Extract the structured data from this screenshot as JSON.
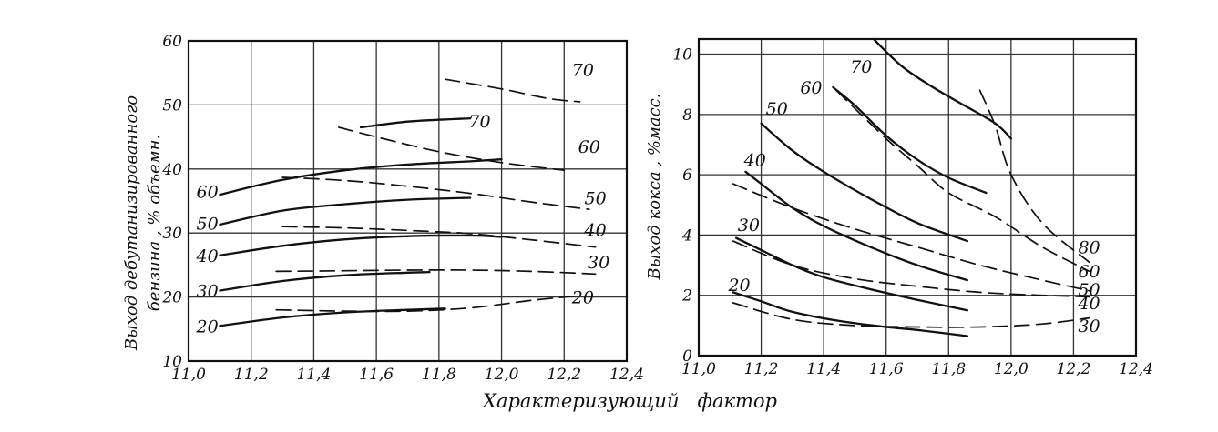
{
  "xlabel": "Характеризующий   фактор",
  "chart_data": [
    {
      "type": "line",
      "ylabel_line1": "Выход дебутанизированного",
      "ylabel_line2": "бензина , % объемн.",
      "xlim": [
        11.0,
        12.4
      ],
      "ylim": [
        10,
        60
      ],
      "x_ticks": [
        "11,0",
        "11,2",
        "11,4",
        "11,6",
        "11,8",
        "12,0",
        "12,2",
        "12,4"
      ],
      "y_ticks": [
        "10",
        "20",
        "30",
        "40",
        "50",
        "60"
      ],
      "series": [
        {
          "style": "solid",
          "label": "20",
          "label_pos": [
            11.06,
            15.5
          ],
          "points": [
            [
              11.1,
              15.5
            ],
            [
              11.3,
              16.8
            ],
            [
              11.5,
              17.6
            ],
            [
              11.7,
              18.0
            ],
            [
              11.82,
              18.2
            ]
          ]
        },
        {
          "style": "solid",
          "label": "30",
          "label_pos": [
            11.06,
            21
          ],
          "points": [
            [
              11.1,
              21.0
            ],
            [
              11.3,
              22.5
            ],
            [
              11.5,
              23.4
            ],
            [
              11.7,
              23.8
            ],
            [
              11.77,
              23.9
            ]
          ]
        },
        {
          "style": "solid",
          "label": "40",
          "label_pos": [
            11.06,
            26.5
          ],
          "points": [
            [
              11.1,
              26.5
            ],
            [
              11.3,
              28.0
            ],
            [
              11.5,
              29.0
            ],
            [
              11.7,
              29.5
            ],
            [
              11.9,
              29.6
            ],
            [
              12.0,
              29.4
            ]
          ]
        },
        {
          "style": "solid",
          "label": "50",
          "label_pos": [
            11.06,
            31.5
          ],
          "points": [
            [
              11.1,
              31.3
            ],
            [
              11.3,
              33.5
            ],
            [
              11.5,
              34.5
            ],
            [
              11.7,
              35.2
            ],
            [
              11.9,
              35.5
            ]
          ]
        },
        {
          "style": "solid",
          "label": "60",
          "label_pos": [
            11.06,
            36.5
          ],
          "points": [
            [
              11.1,
              36.0
            ],
            [
              11.3,
              38.3
            ],
            [
              11.5,
              39.8
            ],
            [
              11.7,
              40.7
            ],
            [
              11.9,
              41.2
            ],
            [
              12.0,
              41.5
            ]
          ]
        },
        {
          "style": "solid",
          "label": "70",
          "label_pos": [
            11.93,
            47.5
          ],
          "points": [
            [
              11.55,
              46.5
            ],
            [
              11.7,
              47.4
            ],
            [
              11.85,
              47.8
            ],
            [
              11.9,
              47.9
            ]
          ]
        },
        {
          "style": "dashed",
          "label": "20",
          "label_pos": [
            12.26,
            20
          ],
          "points": [
            [
              11.28,
              18.0
            ],
            [
              11.5,
              17.8
            ],
            [
              11.7,
              17.8
            ],
            [
              11.9,
              18.3
            ],
            [
              12.1,
              19.5
            ],
            [
              12.25,
              20.2
            ]
          ]
        },
        {
          "style": "dashed",
          "label": "30",
          "label_pos": [
            12.31,
            25.5
          ],
          "points": [
            [
              11.28,
              24.0
            ],
            [
              11.5,
              24.1
            ],
            [
              11.7,
              24.2
            ],
            [
              11.9,
              24.2
            ],
            [
              12.1,
              24.0
            ],
            [
              12.3,
              23.6
            ]
          ]
        },
        {
          "style": "dashed",
          "label": "40",
          "label_pos": [
            12.3,
            30.5
          ],
          "points": [
            [
              11.3,
              31.0
            ],
            [
              11.5,
              30.8
            ],
            [
              11.7,
              30.4
            ],
            [
              11.9,
              29.9
            ],
            [
              12.1,
              28.9
            ],
            [
              12.3,
              27.8
            ]
          ]
        },
        {
          "style": "dashed",
          "label": "50",
          "label_pos": [
            12.3,
            35.5
          ],
          "points": [
            [
              11.3,
              38.7
            ],
            [
              11.5,
              38.2
            ],
            [
              11.7,
              37.3
            ],
            [
              11.9,
              36.2
            ],
            [
              12.1,
              34.8
            ],
            [
              12.28,
              33.7
            ]
          ]
        },
        {
          "style": "dashed",
          "label": "60",
          "label_pos": [
            12.28,
            43.5
          ],
          "points": [
            [
              11.48,
              46.5
            ],
            [
              11.6,
              45.0
            ],
            [
              11.8,
              42.7
            ],
            [
              12.0,
              41.0
            ],
            [
              12.2,
              39.8
            ]
          ]
        },
        {
          "style": "dashed",
          "label": "70",
          "label_pos": [
            12.26,
            55.5
          ],
          "points": [
            [
              11.82,
              54.0
            ],
            [
              12.0,
              52.5
            ],
            [
              12.15,
              51.0
            ],
            [
              12.25,
              50.5
            ]
          ]
        }
      ]
    },
    {
      "type": "line",
      "ylabel": "Выход кокса , %масс.",
      "xlim": [
        11.0,
        12.4
      ],
      "ylim": [
        0,
        10.5
      ],
      "x_ticks": [
        "11,0",
        "11,2",
        "11,4",
        "11,6",
        "11,8",
        "12,0",
        "12,2",
        "12,4"
      ],
      "y_ticks": [
        "0",
        "2",
        "4",
        "6",
        "8",
        "10"
      ],
      "series": [
        {
          "style": "solid",
          "label": "20",
          "label_pos": [
            11.13,
            2.35
          ],
          "points": [
            [
              11.11,
              2.1
            ],
            [
              11.2,
              1.8
            ],
            [
              11.3,
              1.45
            ],
            [
              11.45,
              1.15
            ],
            [
              11.6,
              0.95
            ],
            [
              11.7,
              0.85
            ],
            [
              11.86,
              0.65
            ]
          ]
        },
        {
          "style": "solid",
          "label": "30",
          "label_pos": [
            11.16,
            4.35
          ],
          "points": [
            [
              11.12,
              3.9
            ],
            [
              11.2,
              3.5
            ],
            [
              11.3,
              3.0
            ],
            [
              11.4,
              2.6
            ],
            [
              11.55,
              2.2
            ],
            [
              11.7,
              1.85
            ],
            [
              11.86,
              1.5
            ]
          ]
        },
        {
          "style": "solid",
          "label": "40",
          "label_pos": [
            11.18,
            6.5
          ],
          "points": [
            [
              11.15,
              6.1
            ],
            [
              11.2,
              5.7
            ],
            [
              11.3,
              4.9
            ],
            [
              11.4,
              4.3
            ],
            [
              11.55,
              3.6
            ],
            [
              11.7,
              3.0
            ],
            [
              11.86,
              2.5
            ]
          ]
        },
        {
          "style": "solid",
          "label": "50",
          "label_pos": [
            11.25,
            8.2
          ],
          "points": [
            [
              11.2,
              7.7
            ],
            [
              11.3,
              6.8
            ],
            [
              11.4,
              6.1
            ],
            [
              11.55,
              5.2
            ],
            [
              11.7,
              4.4
            ],
            [
              11.86,
              3.8
            ]
          ]
        },
        {
          "style": "solid",
          "label": "60",
          "label_pos": [
            11.36,
            8.9
          ],
          "points": [
            [
              11.43,
              8.9
            ],
            [
              11.5,
              8.3
            ],
            [
              11.6,
              7.3
            ],
            [
              11.7,
              6.5
            ],
            [
              11.8,
              5.9
            ],
            [
              11.92,
              5.4
            ]
          ]
        },
        {
          "style": "solid",
          "label": "70",
          "label_pos": [
            11.52,
            9.6
          ],
          "points": [
            [
              11.56,
              10.5
            ],
            [
              11.65,
              9.6
            ],
            [
              11.75,
              8.9
            ],
            [
              11.85,
              8.3
            ],
            [
              11.95,
              7.7
            ],
            [
              12.0,
              7.2
            ]
          ]
        },
        {
          "style": "dashed",
          "label": "30",
          "label_pos": [
            12.25,
            1.0
          ],
          "points": [
            [
              11.11,
              1.75
            ],
            [
              11.3,
              1.2
            ],
            [
              11.5,
              1.0
            ],
            [
              11.7,
              0.95
            ],
            [
              11.9,
              0.95
            ],
            [
              12.1,
              1.05
            ],
            [
              12.25,
              1.25
            ]
          ]
        },
        {
          "style": "dashed",
          "label": "40",
          "label_pos": [
            12.25,
            1.75
          ],
          "points": [
            [
              11.11,
              3.8
            ],
            [
              11.3,
              3.0
            ],
            [
              11.5,
              2.55
            ],
            [
              11.7,
              2.3
            ],
            [
              11.9,
              2.1
            ],
            [
              12.1,
              2.0
            ],
            [
              12.25,
              1.95
            ]
          ]
        },
        {
          "style": "dashed",
          "label": "50",
          "label_pos": [
            12.25,
            2.2
          ],
          "points": [
            [
              11.11,
              5.7
            ],
            [
              11.3,
              4.9
            ],
            [
              11.5,
              4.2
            ],
            [
              11.7,
              3.6
            ],
            [
              11.9,
              3.0
            ],
            [
              12.1,
              2.5
            ],
            [
              12.25,
              2.15
            ]
          ]
        },
        {
          "style": "dashed",
          "label": "60",
          "label_pos": [
            12.25,
            2.8
          ],
          "points": [
            [
              11.44,
              8.8
            ],
            [
              11.6,
              7.2
            ],
            [
              11.7,
              6.3
            ],
            [
              11.8,
              5.4
            ],
            [
              11.95,
              4.6
            ],
            [
              12.1,
              3.6
            ],
            [
              12.25,
              2.8
            ]
          ]
        },
        {
          "style": "dashed",
          "label": "80",
          "label_pos": [
            12.25,
            3.6
          ],
          "points": [
            [
              11.9,
              8.8
            ],
            [
              11.95,
              7.6
            ],
            [
              12.0,
              6.0
            ],
            [
              12.1,
              4.4
            ],
            [
              12.25,
              3.1
            ]
          ]
        }
      ]
    }
  ]
}
